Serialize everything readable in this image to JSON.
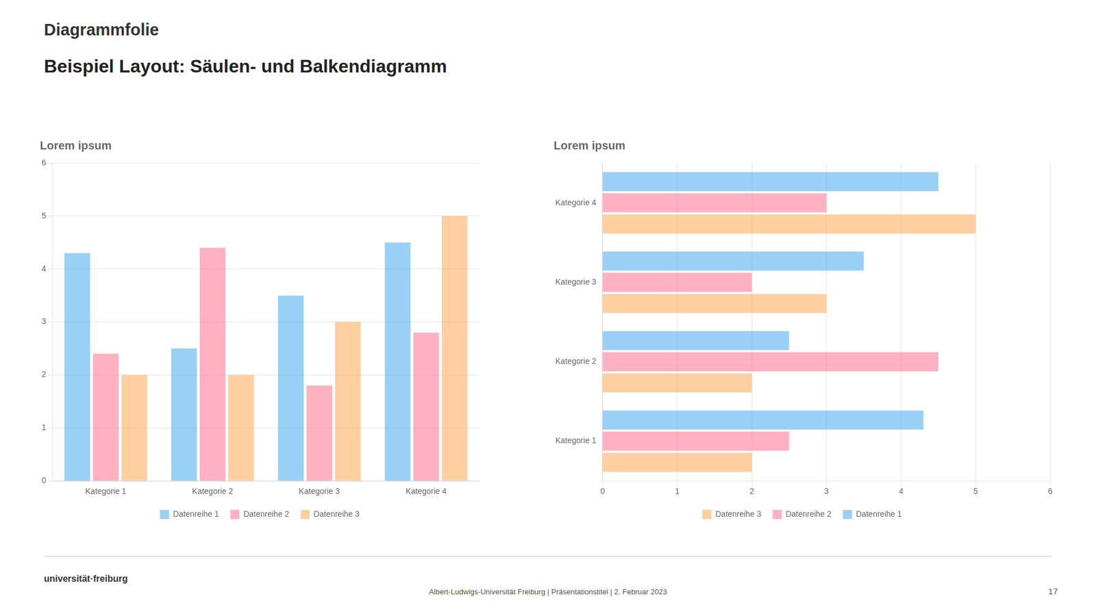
{
  "subtitle": "Diagrammfolie",
  "title": "Beispiel Layout: Säulen- und Balkendiagramm",
  "annotations": [
    "universität·freiburg",
    "Albert-Ludwigs-Universität Freiburg | Präsentationstitel | 2. Februar 2023",
    "17"
  ],
  "chart_data": [
    {
      "type": "bar",
      "title": "Lorem ipsum",
      "categories": [
        "Kategorie 1",
        "Kategorie 2",
        "Kategorie 3",
        "Kategorie 4"
      ],
      "series": [
        {
          "name": "Datenreihe 1",
          "values": [
            4.3,
            2.5,
            3.5,
            4.5
          ]
        },
        {
          "name": "Datenreihe 2",
          "values": [
            2.4,
            4.4,
            1.8,
            2.8
          ]
        },
        {
          "name": "Datenreihe 3",
          "values": [
            2.0,
            2.0,
            3.0,
            5.0
          ]
        }
      ],
      "ylim": [
        0,
        6
      ],
      "yticks": [
        0,
        1,
        2,
        3,
        4,
        5,
        6
      ],
      "grid": true,
      "legend": "bottom"
    },
    {
      "type": "bar",
      "orientation": "horizontal",
      "title": "Lorem ipsum",
      "categories": [
        "Kategorie 1",
        "Kategorie 2",
        "Kategorie 3",
        "Kategorie 4"
      ],
      "series": [
        {
          "name": "Datenreihe 1",
          "values": [
            4.3,
            2.5,
            3.5,
            4.5
          ]
        },
        {
          "name": "Datenreihe 2",
          "values": [
            2.5,
            4.5,
            2.0,
            3.0
          ]
        },
        {
          "name": "Datenreihe 3",
          "values": [
            2.0,
            2.0,
            3.0,
            5.0
          ]
        }
      ],
      "xlim": [
        0,
        6
      ],
      "xticks": [
        0,
        1,
        2,
        3,
        4,
        5,
        6
      ],
      "grid": true,
      "legend": "bottom"
    }
  ]
}
